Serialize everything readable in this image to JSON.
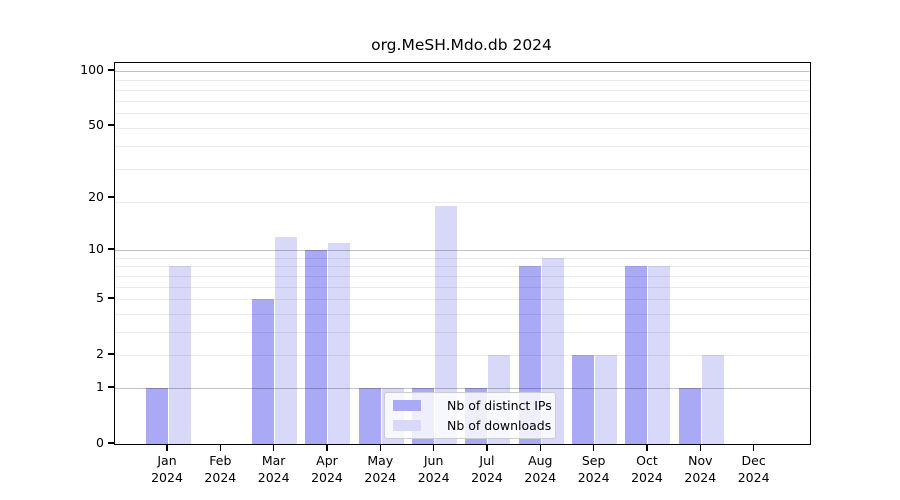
{
  "figure": {
    "title": "org.MeSH.Mdo.db 2024"
  },
  "chart_data": {
    "type": "bar",
    "title": "org.MeSH.Mdo.db 2024",
    "categories": [
      "Jan 2024",
      "Feb 2024",
      "Mar 2024",
      "Apr 2024",
      "May 2024",
      "Jun 2024",
      "Jul 2024",
      "Aug 2024",
      "Sep 2024",
      "Oct 2024",
      "Nov 2024",
      "Dec 2024"
    ],
    "series": [
      {
        "name": "Nb of distinct IPs",
        "color": "#a9a9f5",
        "values": [
          1,
          0,
          5,
          10,
          1,
          1,
          1,
          8,
          2,
          8,
          1,
          0
        ]
      },
      {
        "name": "Nb of downloads",
        "color": "#d8d8f8",
        "values": [
          8,
          0,
          12,
          11,
          1,
          18,
          2,
          9,
          2,
          8,
          2,
          0
        ]
      }
    ],
    "xlabel": "",
    "ylabel": "",
    "yscale": "log(1+y)",
    "yticks": [
      0,
      1,
      2,
      5,
      10,
      20,
      50,
      100
    ],
    "major_grid_values": [
      1,
      10,
      100
    ],
    "minor_grid_one_plus_v": [
      3,
      4,
      5,
      6,
      7,
      8,
      9,
      10,
      20,
      30,
      40,
      50,
      60,
      70,
      80,
      90
    ],
    "grid": true,
    "legend_position": "inside-bottom-center",
    "bar_layout": "grouped-pairs"
  }
}
